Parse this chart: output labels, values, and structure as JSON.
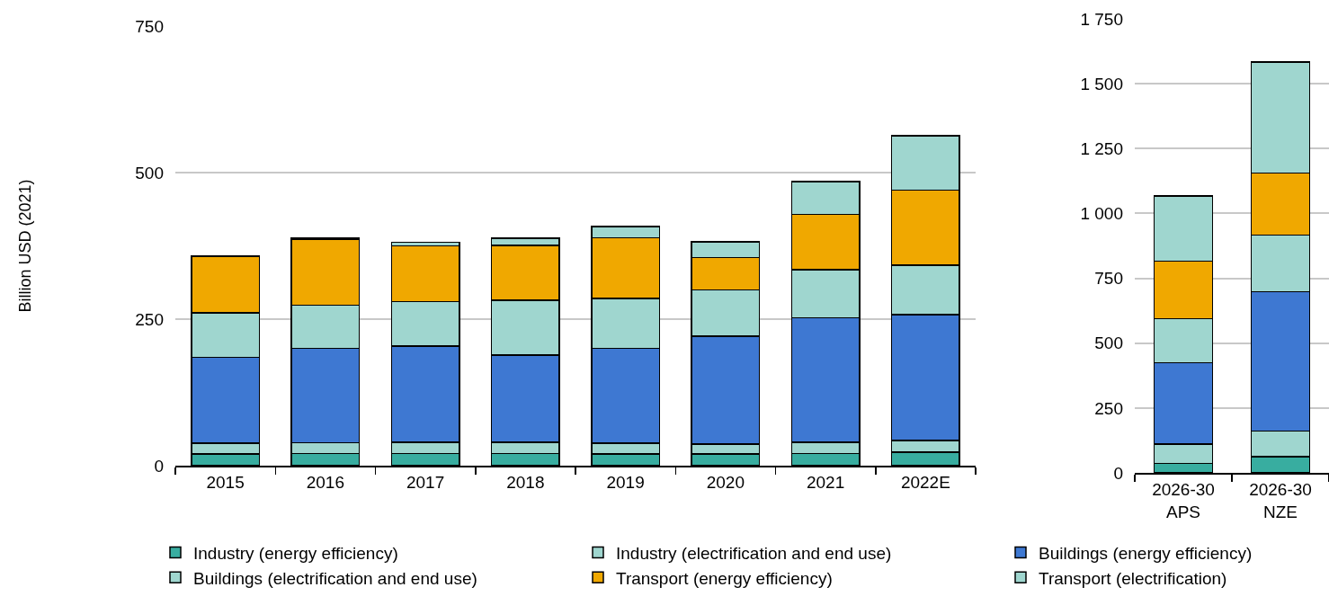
{
  "chart_data": [
    {
      "type": "bar",
      "stacked": true,
      "ylabel": "Billion USD (2021)",
      "categories": [
        "2015",
        "2016",
        "2017",
        "2018",
        "2019",
        "2020",
        "2021",
        "2022E"
      ],
      "ylim": [
        0,
        750
      ],
      "yticks": [
        0,
        250,
        500,
        750
      ],
      "grid": "y",
      "legend": "bottom",
      "series": [
        {
          "name": "Industry (energy efficiency)",
          "color": "#38ada0",
          "values": [
            20,
            21,
            21,
            21,
            20,
            20,
            21,
            23
          ]
        },
        {
          "name": "Industry (electrification and end use)",
          "color": "#9fd6cf",
          "values": [
            18,
            18,
            19,
            19,
            18,
            17,
            19,
            20
          ]
        },
        {
          "name": "Buildings (energy efficiency)",
          "color": "#3e78d2",
          "values": [
            147,
            161,
            164,
            149,
            162,
            184,
            212,
            215
          ]
        },
        {
          "name": "Buildings (electrification and end use)",
          "color": "#9fd6cf",
          "values": [
            76,
            74,
            76,
            93,
            85,
            79,
            82,
            84
          ]
        },
        {
          "name": "Transport (energy efficiency)",
          "color": "#f0a800",
          "values": [
            96,
            112,
            95,
            94,
            104,
            55,
            95,
            128
          ]
        },
        {
          "name": "Transport (electrification)",
          "color": "#9fd6cf",
          "values": [
            null,
            2,
            6,
            12,
            19,
            27,
            56,
            93
          ]
        }
      ]
    },
    {
      "type": "bar",
      "stacked": true,
      "categories": [
        "2026-30\nAPS",
        "2026-30\nNZE"
      ],
      "ylim": [
        0,
        1750
      ],
      "yticks": [
        0,
        250,
        500,
        750,
        {
          "value": 1000,
          "label": "1 000"
        },
        {
          "value": 1250,
          "label": "1 250"
        },
        {
          "value": 1500,
          "label": "1 500"
        },
        {
          "value": 1750,
          "label": "1 750"
        }
      ],
      "grid": "y",
      "series": [
        {
          "color": "#38ada0",
          "values": [
            36,
            63
          ]
        },
        {
          "color": "#9fd6cf",
          "values": [
            75,
            98
          ]
        },
        {
          "color": "#3e78d2",
          "values": [
            313,
            538
          ]
        },
        {
          "color": "#9fd6cf",
          "values": [
            171,
            217
          ]
        },
        {
          "color": "#f0a800",
          "values": [
            221,
            239
          ]
        },
        {
          "color": "#9fd6cf",
          "values": [
            251,
            428
          ]
        }
      ]
    }
  ]
}
